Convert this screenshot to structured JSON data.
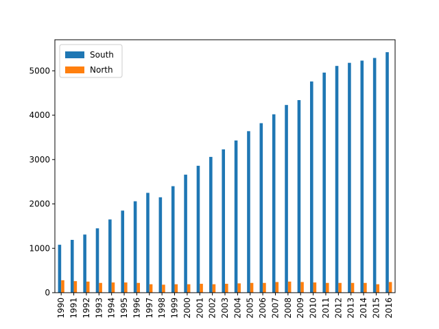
{
  "chart_data": {
    "type": "bar",
    "title": "",
    "xlabel": "",
    "ylabel": "",
    "categories": [
      "1990",
      "1991",
      "1992",
      "1993",
      "1994",
      "1995",
      "1996",
      "1997",
      "1998",
      "1999",
      "2000",
      "2001",
      "2002",
      "2003",
      "2004",
      "2005",
      "2006",
      "2007",
      "2008",
      "2009",
      "2010",
      "2011",
      "2012",
      "2013",
      "2014",
      "2015",
      "2016"
    ],
    "series": [
      {
        "name": "South",
        "color": "#1f77b4",
        "values": [
          1080,
          1190,
          1310,
          1450,
          1650,
          1850,
          2060,
          2250,
          2150,
          2400,
          2660,
          2860,
          3060,
          3230,
          3430,
          3640,
          3820,
          4020,
          4230,
          4340,
          4760,
          4960,
          5110,
          5180,
          5230,
          5290,
          5420
        ]
      },
      {
        "name": "North",
        "color": "#ff7f0e",
        "values": [
          280,
          260,
          250,
          220,
          230,
          230,
          220,
          190,
          180,
          190,
          190,
          200,
          190,
          200,
          210,
          220,
          220,
          240,
          250,
          240,
          230,
          220,
          220,
          220,
          220,
          190,
          240
        ]
      }
    ],
    "ylim": [
      0,
      5700
    ],
    "yticks": [
      0,
      1000,
      2000,
      3000,
      4000,
      5000
    ],
    "legend": "top-left",
    "grid": false
  }
}
